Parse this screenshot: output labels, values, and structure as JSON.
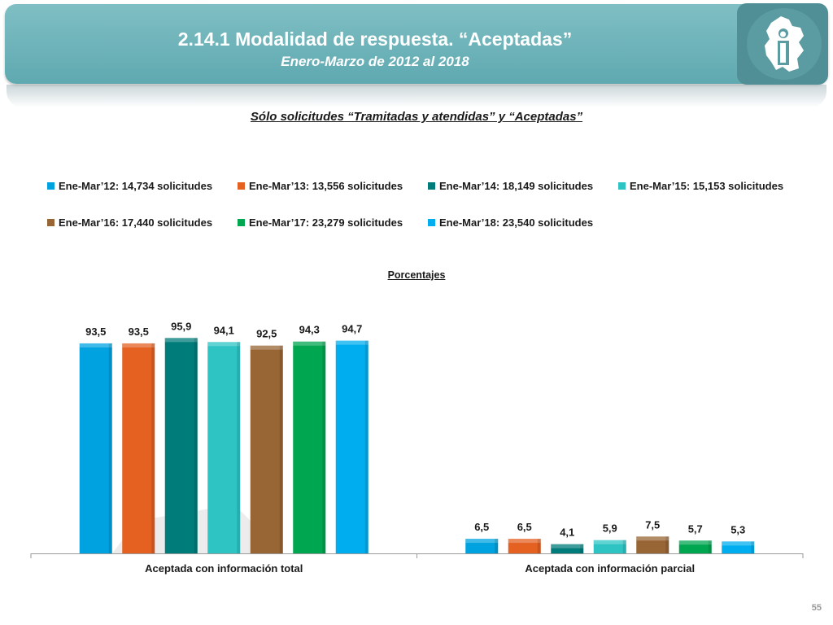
{
  "header": {
    "title": "2.14.1 Modalidad de respuesta. “Aceptadas”",
    "subtitle": "Enero-Marzo de 2012 al 2018"
  },
  "section_title": "Sólo solicitudes “Tramitadas y atendidas” y “Aceptadas”",
  "chart_data": {
    "type": "bar",
    "title": "Porcentajes",
    "categories": [
      "Aceptada con información total",
      "Aceptada con información parcial"
    ],
    "series": [
      {
        "name": "Ene-Mar’12: 14,734 solicitudes",
        "values": [
          93.5,
          6.5
        ],
        "labels": [
          "93,5",
          "6,5"
        ],
        "color": "#00a3e0"
      },
      {
        "name": "Ene-Mar’13: 13,556 solicitudes",
        "values": [
          93.5,
          6.5
        ],
        "labels": [
          "93,5",
          "6,5"
        ],
        "color": "#e46122"
      },
      {
        "name": "Ene-Mar’14: 18,149 solicitudes",
        "values": [
          95.9,
          4.1
        ],
        "labels": [
          "95,9",
          "4,1"
        ],
        "color": "#007c7a"
      },
      {
        "name": "Ene-Mar’15: 15,153 solicitudes",
        "values": [
          94.1,
          5.9
        ],
        "labels": [
          "94,1",
          "5,9"
        ],
        "color": "#2ec4c4"
      },
      {
        "name": "Ene-Mar’16: 17,440 solicitudes",
        "values": [
          92.5,
          7.5
        ],
        "labels": [
          "92,5",
          "7,5"
        ],
        "color": "#986535"
      },
      {
        "name": "Ene-Mar’17: 23,279 solicitudes",
        "values": [
          94.3,
          5.7
        ],
        "labels": [
          "94,3",
          "5,7"
        ],
        "color": "#00a650"
      },
      {
        "name": "Ene-Mar’18: 23,540 solicitudes",
        "values": [
          94.7,
          5.3
        ],
        "labels": [
          "94,7",
          "5,3"
        ],
        "color": "#00aeef"
      }
    ],
    "ylim": [
      0,
      100
    ],
    "grid": false,
    "legend_position": "top"
  },
  "page_number": "55"
}
